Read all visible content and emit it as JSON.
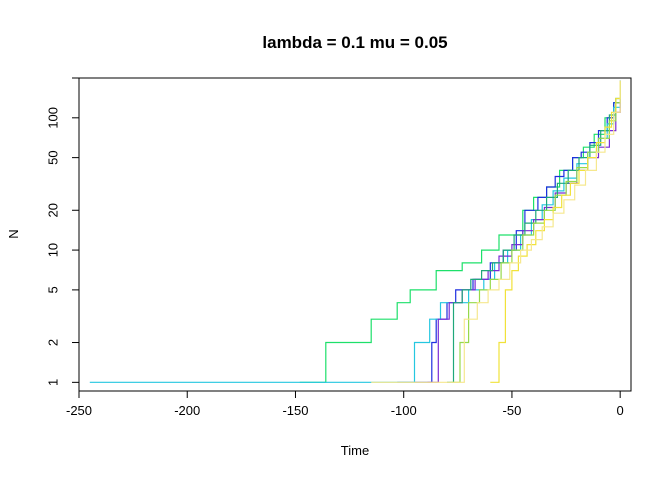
{
  "chart_data": {
    "type": "line",
    "title": "lambda = 0.1 mu = 0.05",
    "xlabel": "Time",
    "ylabel": "N",
    "xlim": [
      -250,
      5
    ],
    "ylim": [
      0.86,
      200
    ],
    "yscale": "log",
    "grid": false,
    "legend": "none",
    "xticks": [
      {
        "value": -250,
        "label": "-250"
      },
      {
        "value": -200,
        "label": "-200"
      },
      {
        "value": -150,
        "label": "-150"
      },
      {
        "value": -100,
        "label": "-100"
      },
      {
        "value": -50,
        "label": "-50"
      },
      {
        "value": 0,
        "label": "0"
      }
    ],
    "yticks": [
      {
        "value": 1,
        "label": "1"
      },
      {
        "value": 2,
        "label": "2"
      },
      {
        "value": 5,
        "label": "5"
      },
      {
        "value": 10,
        "label": "10"
      },
      {
        "value": 20,
        "label": "20"
      },
      {
        "value": 50,
        "label": "50"
      },
      {
        "value": 100,
        "label": "100"
      },
      {
        "value": 200,
        "label": ""
      }
    ],
    "series": [
      {
        "color": "#1de06a",
        "x": [
          -148,
          -136,
          -115,
          -103,
          -97,
          -85,
          -73,
          -64,
          -56,
          -45,
          -40,
          -34,
          -28,
          -22,
          -17,
          -12,
          -7,
          -3,
          0
        ],
        "y": [
          1,
          2,
          3,
          4,
          5,
          7,
          8,
          10,
          13,
          20,
          25,
          30,
          40,
          50,
          60,
          75,
          100,
          130,
          190
        ]
      },
      {
        "color": "#1e2fe0",
        "x": [
          -103,
          -87,
          -85,
          -80,
          -76,
          -68,
          -60,
          -54,
          -48,
          -44,
          -38,
          -34,
          -30,
          -26,
          -22,
          -18,
          -14,
          -10,
          -6,
          -3,
          0
        ],
        "y": [
          1,
          2,
          3,
          4,
          5,
          6,
          8,
          10,
          14,
          20,
          25,
          30,
          36,
          40,
          50,
          55,
          65,
          80,
          100,
          130,
          190
        ]
      },
      {
        "color": "#25c7e0",
        "x": [
          -245,
          -95,
          -88,
          -83,
          -78,
          -70,
          -63,
          -58,
          -52,
          -46,
          -41,
          -36,
          -31,
          -26,
          -20,
          -15,
          -10,
          -6,
          -3,
          0
        ],
        "y": [
          1,
          2,
          3,
          4,
          4,
          5,
          6,
          8,
          10,
          13,
          17,
          22,
          28,
          35,
          45,
          55,
          70,
          90,
          120,
          190
        ]
      },
      {
        "color": "#7a2bd6",
        "x": [
          -89,
          -84,
          -79,
          -73,
          -67,
          -61,
          -56,
          -50,
          -45,
          -40,
          -35,
          -30,
          -25,
          -20,
          -15,
          -10,
          -5,
          -2,
          0
        ],
        "y": [
          1,
          3,
          4,
          5,
          6,
          7,
          9,
          11,
          14,
          17,
          21,
          27,
          32,
          40,
          50,
          60,
          80,
          110,
          190
        ]
      },
      {
        "color": "#1fa87a",
        "x": [
          -80,
          -77,
          -73,
          -69,
          -64,
          -59,
          -54,
          -49,
          -44,
          -39,
          -34,
          -29,
          -24,
          -19,
          -14,
          -9,
          -5,
          -2,
          0
        ],
        "y": [
          1,
          4,
          5,
          6,
          7,
          8,
          10,
          13,
          16,
          20,
          25,
          32,
          40,
          50,
          62,
          80,
          105,
          140,
          190
        ]
      },
      {
        "color": "#96d94a",
        "x": [
          -78,
          -74,
          -70,
          -65,
          -60,
          -55,
          -50,
          -45,
          -40,
          -35,
          -30,
          -25,
          -20,
          -15,
          -10,
          -5,
          -2,
          0
        ],
        "y": [
          1,
          2,
          4,
          5,
          6,
          8,
          10,
          13,
          16,
          20,
          26,
          33,
          42,
          55,
          70,
          95,
          130,
          190
        ]
      },
      {
        "color": "#f1e23a",
        "x": [
          -60,
          -56,
          -53,
          -50,
          -47,
          -43,
          -39,
          -35,
          -31,
          -27,
          -23,
          -19,
          -15,
          -11,
          -7,
          -4,
          -2,
          0
        ],
        "y": [
          1,
          2,
          5,
          7,
          9,
          11,
          14,
          17,
          21,
          26,
          32,
          40,
          50,
          65,
          85,
          110,
          140,
          190
        ]
      },
      {
        "color": "#f6e88f",
        "x": [
          -115,
          -72,
          -66,
          -61,
          -56,
          -51,
          -46,
          -41,
          -36,
          -31,
          -26,
          -21,
          -16,
          -11,
          -7,
          -3,
          0
        ],
        "y": [
          1,
          3,
          4,
          5,
          6,
          8,
          10,
          12,
          15,
          19,
          24,
          31,
          40,
          55,
          75,
          110,
          190
        ]
      }
    ]
  }
}
